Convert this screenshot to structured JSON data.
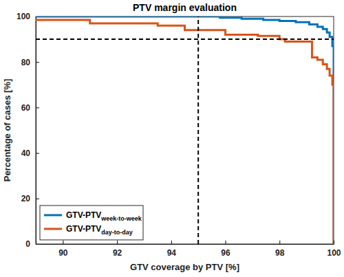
{
  "chart_data": {
    "type": "line",
    "title": "PTV margin evaluation",
    "x_label": "GTV coverage by PTV [%]",
    "y_label": "Percentage of cases [%]",
    "xlim": [
      89,
      100
    ],
    "xticks": [
      90,
      92,
      94,
      96,
      98,
      100
    ],
    "ylim": [
      0,
      100
    ],
    "yticks": [
      0,
      20,
      40,
      60,
      80,
      100
    ],
    "reference_x": 95,
    "reference_y": 90,
    "legend": "lower left",
    "series": [
      {
        "name": "GTV-PTV",
        "subscript": "week-to-week",
        "color": "#0072bd",
        "line_style": "step",
        "x": [
          89,
          95.8,
          96.6,
          97.4,
          98,
          98.6,
          99.1,
          99.4,
          99.6,
          99.75,
          99.85,
          99.95,
          100,
          100
        ],
        "values": [
          100,
          99.5,
          99,
          98.5,
          98,
          97.5,
          96.5,
          95.5,
          94.5,
          93,
          91,
          87,
          67,
          0
        ]
      },
      {
        "name": "GTV-PTV",
        "subscript": "day-to-day",
        "color": "#d95319",
        "line_style": "step",
        "x": [
          89,
          91,
          93.5,
          94.5,
          96,
          97.2,
          98,
          98.2,
          99.2,
          99.4,
          99.6,
          99.75,
          99.85,
          99.95,
          100,
          100
        ],
        "values": [
          98.5,
          97,
          96,
          94,
          92,
          91.5,
          90,
          89,
          82,
          81,
          79,
          77,
          74,
          70,
          67,
          0
        ]
      }
    ]
  }
}
